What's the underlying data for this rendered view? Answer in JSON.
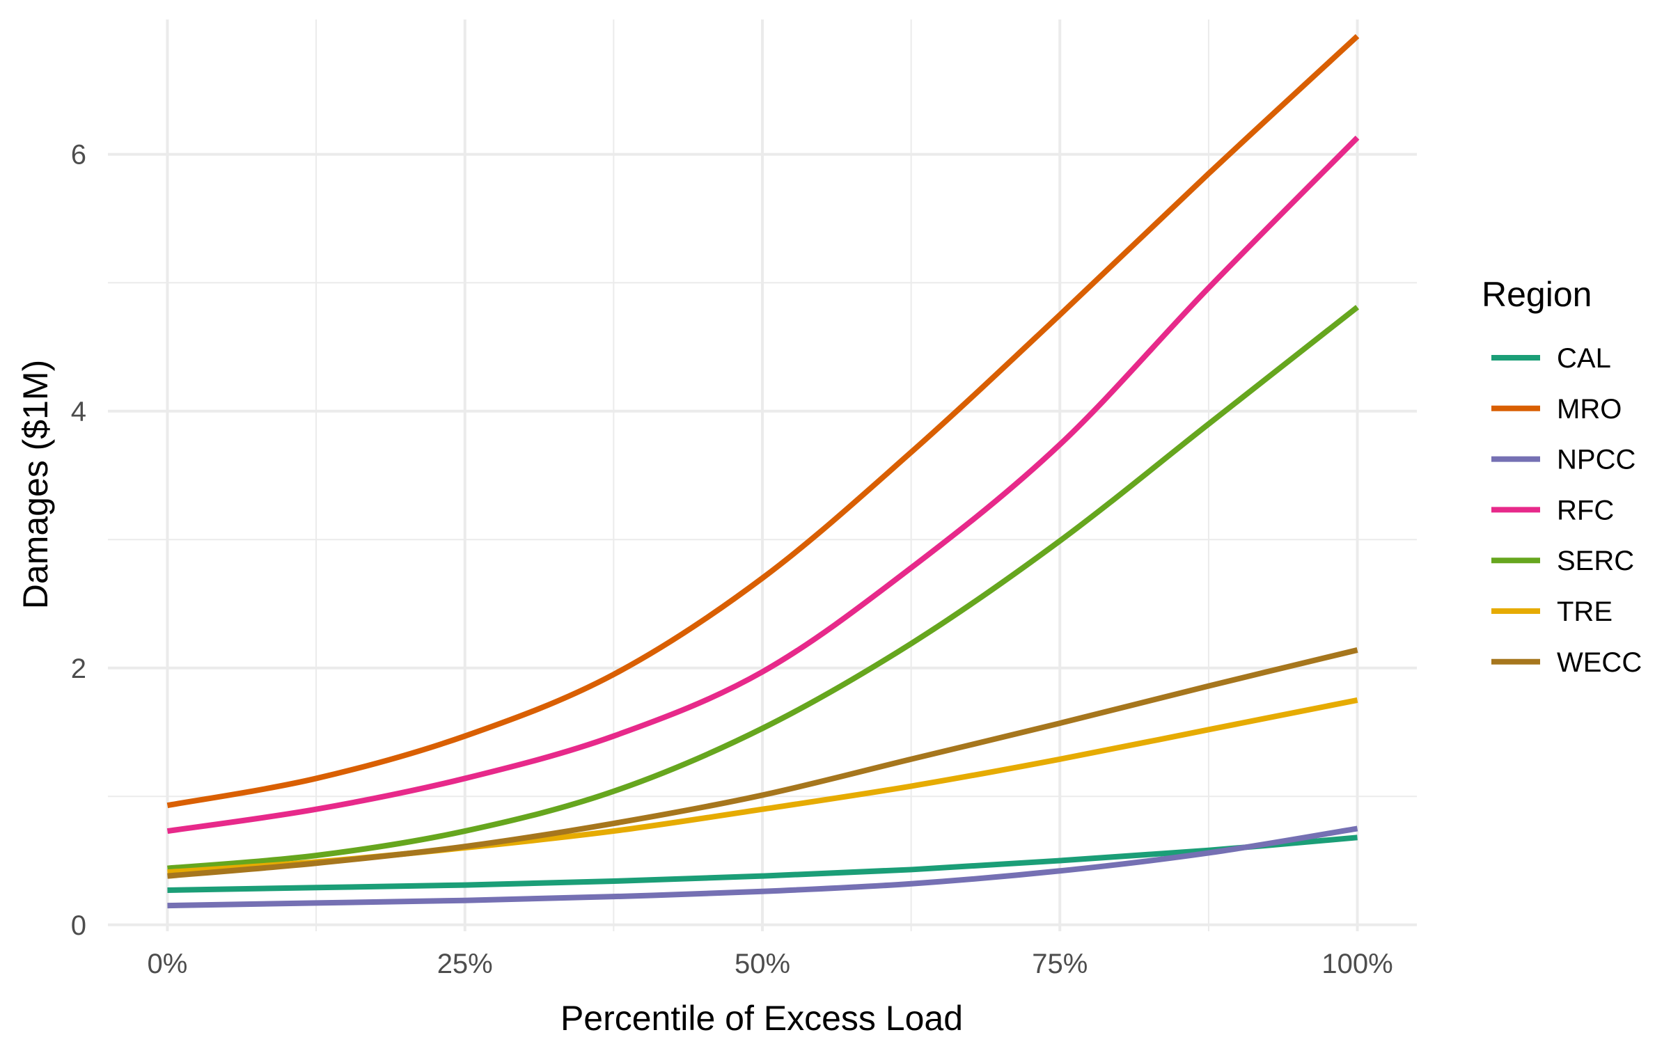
{
  "chart_data": {
    "type": "line",
    "title": "",
    "xlabel": "Percentile of Excess Load",
    "ylabel": "Damages ($1M)",
    "xlim": [
      -0.05,
      1.05
    ],
    "ylim": [
      -0.05,
      7.05
    ],
    "x_ticks": [
      0,
      0.25,
      0.5,
      0.75,
      1.0
    ],
    "x_tick_labels": [
      "0%",
      "25%",
      "50%",
      "75%",
      "100%"
    ],
    "x_minor_ticks": [
      0.125,
      0.375,
      0.625,
      0.875
    ],
    "y_ticks": [
      0,
      2,
      4,
      6
    ],
    "y_tick_labels": [
      "0",
      "2",
      "4",
      "6"
    ],
    "y_minor_ticks": [
      1,
      3,
      5
    ],
    "grid": true,
    "legend": {
      "title": "Region",
      "position": "right"
    },
    "x": [
      0,
      0.125,
      0.25,
      0.375,
      0.5,
      0.625,
      0.75,
      0.875,
      1.0
    ],
    "series": [
      {
        "name": "CAL",
        "color": "#1B9E77",
        "values": [
          0.27,
          0.29,
          0.31,
          0.34,
          0.38,
          0.43,
          0.5,
          0.58,
          0.68
        ]
      },
      {
        "name": "MRO",
        "color": "#D95F02",
        "values": [
          0.93,
          1.14,
          1.47,
          1.95,
          2.7,
          3.68,
          4.75,
          5.85,
          6.92
        ]
      },
      {
        "name": "NPCC",
        "color": "#7570B3",
        "values": [
          0.15,
          0.17,
          0.19,
          0.22,
          0.26,
          0.32,
          0.42,
          0.56,
          0.75
        ]
      },
      {
        "name": "RFC",
        "color": "#E7298A",
        "values": [
          0.73,
          0.9,
          1.14,
          1.47,
          1.97,
          2.78,
          3.74,
          4.96,
          6.13
        ]
      },
      {
        "name": "SERC",
        "color": "#66A61E",
        "values": [
          0.44,
          0.54,
          0.73,
          1.04,
          1.53,
          2.19,
          2.99,
          3.9,
          4.81
        ]
      },
      {
        "name": "TRE",
        "color": "#E6AB02",
        "values": [
          0.41,
          0.49,
          0.6,
          0.73,
          0.9,
          1.08,
          1.29,
          1.52,
          1.75
        ]
      },
      {
        "name": "WECC",
        "color": "#A6761D",
        "values": [
          0.38,
          0.48,
          0.61,
          0.79,
          1.01,
          1.29,
          1.57,
          1.86,
          2.14
        ]
      }
    ]
  }
}
